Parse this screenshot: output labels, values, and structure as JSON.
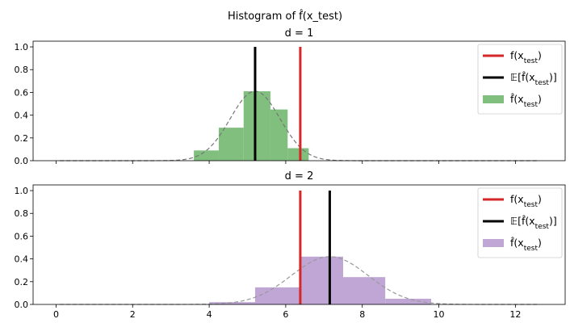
{
  "suptitle": "Histogram of f̂(x_test)",
  "chart_data": [
    {
      "type": "histogram",
      "title": "d = 1",
      "xlim": [
        -0.6,
        13.3
      ],
      "ylim": [
        0,
        1.05
      ],
      "yticks": [
        0.0,
        0.2,
        0.4,
        0.6,
        0.8,
        1.0
      ],
      "ytick_labels": [
        "0.0",
        "0.2",
        "0.4",
        "0.6",
        "0.8",
        "1.0"
      ],
      "xticks": [
        0,
        2,
        4,
        6,
        8,
        10,
        12
      ],
      "xtick_labels": [],
      "bar_color": "#81bf7f",
      "bins": [
        {
          "x0": 3.6,
          "x1": 4.25,
          "h": 0.09
        },
        {
          "x0": 4.25,
          "x1": 4.9,
          "h": 0.29
        },
        {
          "x0": 4.9,
          "x1": 5.6,
          "h": 0.61
        },
        {
          "x0": 5.6,
          "x1": 6.05,
          "h": 0.45
        },
        {
          "x0": 6.05,
          "x1": 6.6,
          "h": 0.11
        }
      ],
      "density_curve": {
        "mu": 5.2,
        "sigma": 0.65,
        "color": "#777777"
      },
      "true_value_line": {
        "x": 6.38,
        "color": "#d62728"
      },
      "expected_value_line": {
        "x": 5.2,
        "color": "#000000"
      },
      "legend": {
        "placement": "upper right",
        "entries": [
          {
            "symbol": "line",
            "color": "#d62728",
            "label": "f(x_test)"
          },
          {
            "symbol": "line",
            "color": "#000000",
            "label": "𝔼[f̂(x_test)]"
          },
          {
            "symbol": "patch",
            "color": "#81bf7f",
            "label": "f̂(x_test)"
          }
        ]
      }
    },
    {
      "type": "histogram",
      "title": "d = 2",
      "xlim": [
        -0.6,
        13.3
      ],
      "ylim": [
        0,
        1.05
      ],
      "yticks": [
        0.0,
        0.2,
        0.4,
        0.6,
        0.8,
        1.0
      ],
      "ytick_labels": [
        "0.0",
        "0.2",
        "0.4",
        "0.6",
        "0.8",
        "1.0"
      ],
      "xticks": [
        0,
        2,
        4,
        6,
        8,
        10,
        12
      ],
      "xtick_labels": [
        "0",
        "2",
        "4",
        "6",
        "8",
        "10",
        "12"
      ],
      "bar_color": "#bfa6d5",
      "bins": [
        {
          "x0": 4.0,
          "x1": 5.2,
          "h": 0.02
        },
        {
          "x0": 5.2,
          "x1": 6.4,
          "h": 0.15
        },
        {
          "x0": 6.4,
          "x1": 7.5,
          "h": 0.42
        },
        {
          "x0": 7.5,
          "x1": 8.6,
          "h": 0.24
        },
        {
          "x0": 8.6,
          "x1": 9.8,
          "h": 0.05
        }
      ],
      "density_curve": {
        "mu": 7.15,
        "sigma": 1.0,
        "color": "#999999"
      },
      "true_value_line": {
        "x": 6.38,
        "color": "#d62728"
      },
      "expected_value_line": {
        "x": 7.15,
        "color": "#000000"
      },
      "legend": {
        "placement": "upper right",
        "entries": [
          {
            "symbol": "line",
            "color": "#d62728",
            "label": "f(x_test)"
          },
          {
            "symbol": "line",
            "color": "#000000",
            "label": "𝔼[f̂(x_test)]"
          },
          {
            "symbol": "patch",
            "color": "#bfa6d5",
            "label": "f̂(x_test)"
          }
        ]
      }
    }
  ]
}
